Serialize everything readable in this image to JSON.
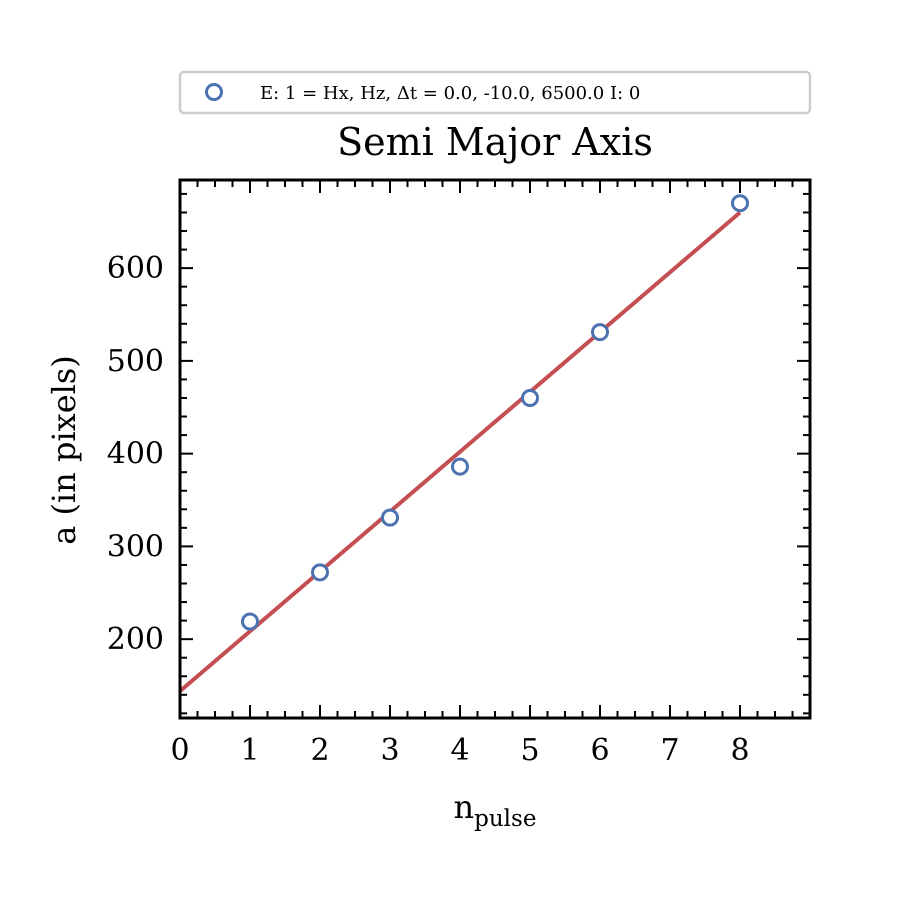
{
  "chart_data": {
    "type": "scatter",
    "title": "Semi Major Axis",
    "xlabel": "n",
    "xlabel_subscript": "pulse",
    "ylabel": "a (in pixels)",
    "xlim": [
      0,
      9
    ],
    "ylim": [
      115,
      695
    ],
    "xticks": [
      0,
      1,
      2,
      3,
      4,
      5,
      6,
      7,
      8
    ],
    "xtick_labels": [
      "0",
      "1",
      "2",
      "3",
      "4",
      "5",
      "6",
      "7",
      "8"
    ],
    "yticks": [
      200,
      300,
      400,
      500,
      600
    ],
    "ytick_labels": [
      "200",
      "300",
      "400",
      "500",
      "600"
    ],
    "legend": {
      "placement": "top-center, above title",
      "label": "E: 1 = Hx, Hz, Δt =  0.0, -10.0, 6500.0 I: 0"
    },
    "series": [
      {
        "kind": "markers",
        "label": "E: 1 = Hx, Hz, Δt =  0.0, -10.0, 6500.0 I: 0",
        "color": "#4c72b0",
        "x": [
          1,
          2,
          3,
          4,
          5,
          6,
          8
        ],
        "y": [
          219,
          272,
          331,
          386,
          460,
          531,
          670
        ]
      },
      {
        "kind": "fit-line",
        "color": "#c44e52",
        "x": [
          0,
          8
        ],
        "y": [
          144,
          660
        ]
      }
    ],
    "grid": false
  }
}
